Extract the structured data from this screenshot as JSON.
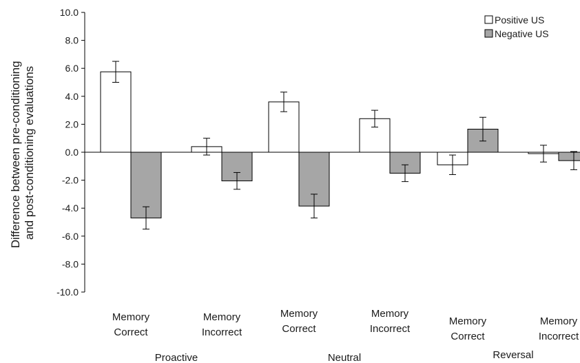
{
  "chart_data": {
    "type": "bar",
    "title": "",
    "ylabel_lines": [
      "Difference between pre-conditioning",
      "and post-conditioning evaluations"
    ],
    "ylim": [
      -10,
      10
    ],
    "yticks": [
      "10.0",
      "8.0",
      "6.0",
      "4.0",
      "2.0",
      "0.0",
      "-2.0",
      "-4.0",
      "-6.0",
      "-8.0",
      "-10.0"
    ],
    "groups": [
      {
        "label": "Proactive",
        "categories": [
          [
            "Memory",
            "Correct"
          ],
          [
            "Memory",
            "Incorrect"
          ]
        ]
      },
      {
        "label": "Neutral",
        "categories": [
          [
            "Memory",
            "Correct"
          ],
          [
            "Memory",
            "Incorrect"
          ]
        ]
      },
      {
        "label": "Reversal",
        "categories": [
          [
            "Memory",
            "Correct"
          ],
          [
            "Memory",
            "Incorrect"
          ]
        ]
      }
    ],
    "series": [
      {
        "name": "Positive US",
        "color": "#ffffff",
        "values": [
          5.75,
          0.4,
          3.6,
          2.4,
          -0.9,
          -0.1
        ],
        "errors": [
          0.75,
          0.6,
          0.7,
          0.6,
          0.7,
          0.6
        ]
      },
      {
        "name": "Negative US",
        "color": "#a6a6a6",
        "values": [
          -4.7,
          -2.05,
          -3.85,
          -1.5,
          1.65,
          -0.6
        ],
        "errors": [
          0.8,
          0.6,
          0.85,
          0.6,
          0.85,
          0.65
        ]
      }
    ],
    "legend": {
      "position": "top-right"
    },
    "grid": false
  }
}
